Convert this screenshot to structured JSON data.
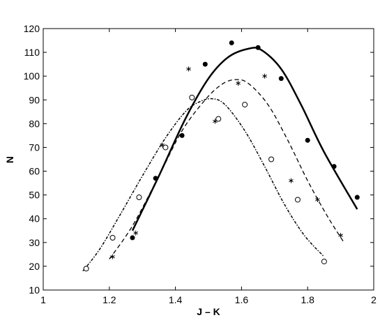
{
  "chart_data": {
    "type": "scatter",
    "xlabel": "J – K",
    "ylabel": "N",
    "xlim": [
      1,
      2
    ],
    "ylim": [
      10,
      120
    ],
    "xticks": [
      1,
      1.2,
      1.4,
      1.6,
      1.8,
      2
    ],
    "yticks": [
      10,
      20,
      30,
      40,
      50,
      60,
      70,
      80,
      90,
      100,
      110,
      120
    ],
    "xtick_labels": [
      "1",
      "1.2",
      "1.4",
      "1.6",
      "1.8",
      "2"
    ],
    "ytick_labels": [
      "10",
      "20",
      "30",
      "40",
      "50",
      "60",
      "70",
      "80",
      "90",
      "100",
      "110",
      "120"
    ],
    "grid": false,
    "series": [
      {
        "marker": "filled-circle",
        "points": [
          [
            1.27,
            32
          ],
          [
            1.34,
            57
          ],
          [
            1.42,
            75
          ],
          [
            1.49,
            105
          ],
          [
            1.57,
            114
          ],
          [
            1.65,
            112
          ],
          [
            1.72,
            99
          ],
          [
            1.8,
            73
          ],
          [
            1.88,
            62
          ],
          [
            1.95,
            49
          ]
        ]
      },
      {
        "marker": "asterisk",
        "points": [
          [
            1.21,
            24
          ],
          [
            1.28,
            34
          ],
          [
            1.36,
            71
          ],
          [
            1.44,
            103
          ],
          [
            1.52,
            81
          ],
          [
            1.59,
            97
          ],
          [
            1.67,
            100
          ],
          [
            1.75,
            56
          ],
          [
            1.83,
            48
          ],
          [
            1.9,
            33
          ]
        ]
      },
      {
        "marker": "open-circle",
        "points": [
          [
            1.13,
            19
          ],
          [
            1.21,
            32
          ],
          [
            1.29,
            49
          ],
          [
            1.37,
            70
          ],
          [
            1.45,
            91
          ],
          [
            1.53,
            82
          ],
          [
            1.61,
            88
          ],
          [
            1.69,
            65
          ],
          [
            1.77,
            48
          ],
          [
            1.85,
            22
          ]
        ]
      },
      {
        "line_style": "solid",
        "points": [
          [
            1.27,
            35
          ],
          [
            1.35,
            58
          ],
          [
            1.43,
            82
          ],
          [
            1.5,
            99
          ],
          [
            1.56,
            108
          ],
          [
            1.62,
            111.5
          ],
          [
            1.66,
            111
          ],
          [
            1.72,
            103
          ],
          [
            1.78,
            88
          ],
          [
            1.85,
            68
          ],
          [
            1.95,
            44
          ]
        ]
      },
      {
        "line_style": "dashed",
        "points": [
          [
            1.2,
            23
          ],
          [
            1.27,
            37
          ],
          [
            1.35,
            58
          ],
          [
            1.42,
            77
          ],
          [
            1.49,
            90
          ],
          [
            1.54,
            96.5
          ],
          [
            1.58,
            98.5
          ],
          [
            1.62,
            97
          ],
          [
            1.68,
            88
          ],
          [
            1.74,
            73
          ],
          [
            1.8,
            56
          ],
          [
            1.86,
            41
          ],
          [
            1.91,
            30
          ]
        ]
      },
      {
        "line_style": "dash-dot",
        "points": [
          [
            1.12,
            18
          ],
          [
            1.17,
            27
          ],
          [
            1.23,
            41
          ],
          [
            1.3,
            58
          ],
          [
            1.37,
            74
          ],
          [
            1.43,
            85
          ],
          [
            1.47,
            89
          ],
          [
            1.51,
            90.5
          ],
          [
            1.55,
            88
          ],
          [
            1.61,
            77
          ],
          [
            1.67,
            62
          ],
          [
            1.73,
            46
          ],
          [
            1.79,
            33
          ],
          [
            1.85,
            24
          ]
        ]
      }
    ]
  }
}
